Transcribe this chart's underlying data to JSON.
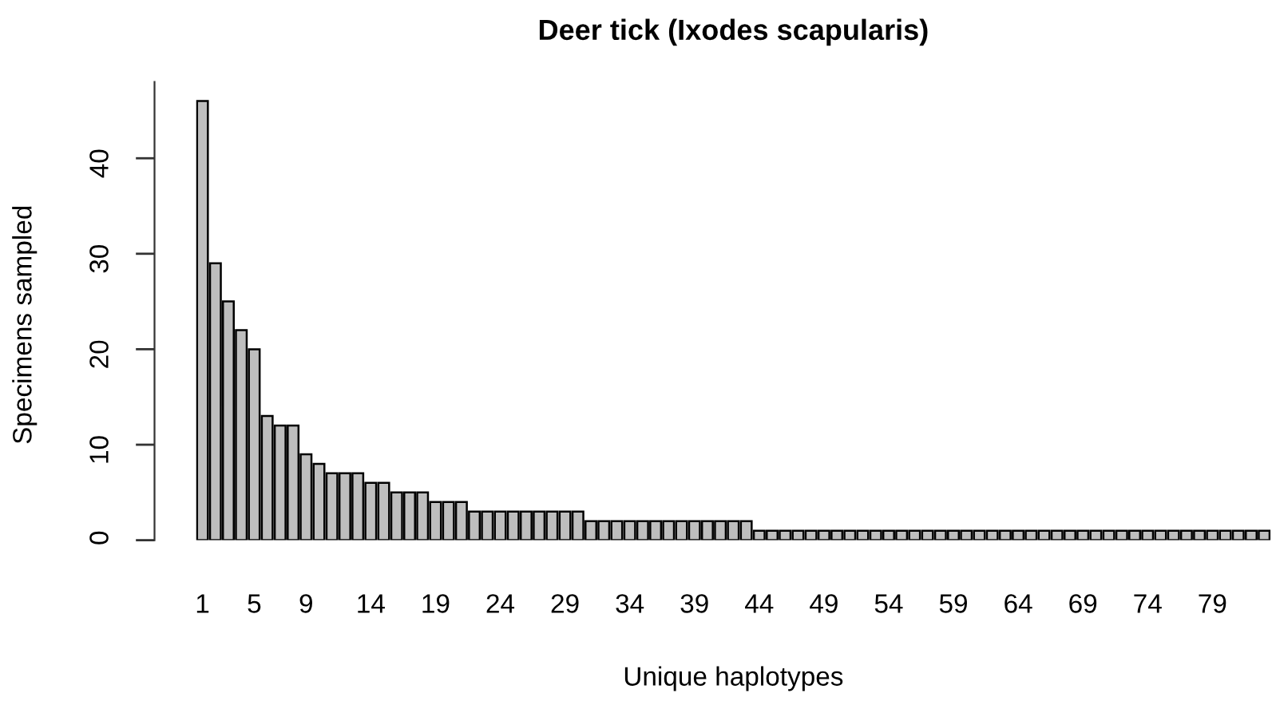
{
  "chart_data": {
    "type": "bar",
    "title": "Deer tick (Ixodes scapularis)",
    "xlabel": "Unique haplotypes",
    "ylabel": "Specimens sampled",
    "categories": [
      "1",
      null,
      null,
      null,
      "5",
      null,
      null,
      null,
      "9",
      null,
      null,
      null,
      null,
      "14",
      null,
      null,
      null,
      null,
      "19",
      null,
      null,
      null,
      null,
      "24",
      null,
      null,
      null,
      null,
      "29",
      null,
      null,
      null,
      null,
      "34",
      null,
      null,
      null,
      null,
      "39",
      null,
      null,
      null,
      null,
      "44",
      null,
      null,
      null,
      null,
      "49",
      null,
      null,
      null,
      null,
      "54",
      null,
      null,
      null,
      null,
      "59",
      null,
      null,
      null,
      null,
      "64",
      null,
      null,
      null,
      null,
      "69",
      null,
      null,
      null,
      null,
      "74",
      null,
      null,
      null,
      null,
      "79",
      null,
      null,
      null,
      null
    ],
    "values": [
      46,
      29,
      25,
      22,
      20,
      13,
      12,
      12,
      9,
      8,
      7,
      7,
      7,
      6,
      6,
      5,
      5,
      5,
      4,
      4,
      4,
      3,
      3,
      3,
      3,
      3,
      3,
      3,
      3,
      3,
      2,
      2,
      2,
      2,
      2,
      2,
      2,
      2,
      2,
      2,
      2,
      2,
      2,
      1,
      1,
      1,
      1,
      1,
      1,
      1,
      1,
      1,
      1,
      1,
      1,
      1,
      1,
      1,
      1,
      1,
      1,
      1,
      1,
      1,
      1,
      1,
      1,
      1,
      1,
      1,
      1,
      1,
      1,
      1,
      1,
      1,
      1,
      1,
      1,
      1,
      1,
      1,
      1
    ],
    "color": "#bebebe",
    "ylim": [
      0,
      48
    ],
    "yticks": [
      0,
      10,
      20,
      30,
      40
    ],
    "grid": false
  }
}
